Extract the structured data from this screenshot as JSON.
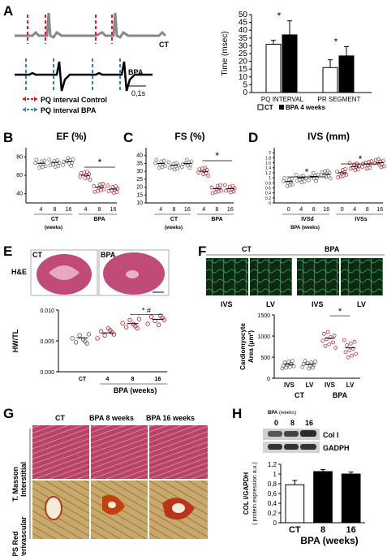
{
  "panels": {
    "A": {
      "label": "A",
      "trace_ct": "CT",
      "trace_bpa": "BPA",
      "scale": "0,1s",
      "legend_control": "PQ interval Control",
      "legend_bpa": "PQ interval BPA",
      "colors": {
        "control": "#e41a1c",
        "bpa": "#377eb8"
      },
      "chart_data": {
        "type": "bar",
        "categories": [
          "PQ INTERVAL",
          "PR SEGMENT"
        ],
        "series": [
          {
            "name": "CT",
            "values": [
              31,
              16
            ],
            "err": [
              2.5,
              5
            ]
          },
          {
            "name": "BPA 4 weeks",
            "values": [
              37,
              23.5
            ],
            "err": [
              9,
              6
            ]
          }
        ],
        "ylabel": "Time (msec)",
        "ylim": [
          0,
          50
        ],
        "yticks": [
          "0",
          "5",
          "10",
          "15",
          "20",
          "25",
          "30",
          "35",
          "40",
          "45",
          "50"
        ],
        "sig": [
          "*",
          "*"
        ],
        "legend": [
          "CT",
          "BPA 4 weeks"
        ]
      }
    },
    "B": {
      "label": "B",
      "chart_data": {
        "type": "scatter",
        "title": "EF (%)",
        "ylim": [
          30,
          90
        ],
        "yticks": [
          "40",
          "60",
          "80"
        ],
        "categories": [
          "4",
          "8",
          "16",
          "4",
          "8",
          "16"
        ],
        "groups": [
          "CT",
          "BPA"
        ],
        "group_sub": "(weeks)",
        "means": [
          73,
          74,
          75,
          60,
          47,
          45
        ],
        "sig": "*"
      }
    },
    "C": {
      "label": "C",
      "chart_data": {
        "type": "scatter",
        "title": "FS (%)",
        "ylim": [
          10,
          45
        ],
        "yticks": [
          "10",
          "15",
          "20",
          "25",
          "30",
          "35",
          "40"
        ],
        "categories": [
          "4",
          "8",
          "16",
          "4",
          "8",
          "16"
        ],
        "groups": [
          "CT",
          "BPA"
        ],
        "group_sub": "(weeks)",
        "means": [
          35,
          34,
          35,
          30,
          19,
          19
        ],
        "sig": "*"
      }
    },
    "D": {
      "label": "D",
      "chart_data": {
        "type": "scatter",
        "title": "IVS (mm)",
        "ylim": [
          0,
          2.2
        ],
        "yticks": [
          "0",
          "0.2",
          "0.4",
          "0.6",
          "0.8",
          "1",
          "1.2",
          "1.4",
          "1.6",
          "1.8",
          "2"
        ],
        "categories": [
          "0",
          "4",
          "8",
          "16",
          "0",
          "4",
          "8",
          "16"
        ],
        "groups": [
          "IVSd",
          "IVSs"
        ],
        "group_sub": "BPA (weeks)",
        "means": [
          0.85,
          1.0,
          1.05,
          1.15,
          1.2,
          1.45,
          1.55,
          1.6
        ],
        "sig": [
          "*",
          "*"
        ]
      }
    },
    "E": {
      "label": "E",
      "img_ct": "CT",
      "img_bpa": "BPA",
      "stain": "H&E",
      "chart_data": {
        "type": "scatter",
        "ylabel": "HW/TL",
        "ylim": [
          0,
          0.01
        ],
        "yticks": [
          "0.000",
          "0.005",
          "0.010"
        ],
        "categories": [
          "CT",
          "4",
          "8",
          "16"
        ],
        "xgroup": "BPA (weeks)",
        "means": [
          0.0055,
          0.0063,
          0.0078,
          0.0085
        ],
        "sig": "* #"
      }
    },
    "F": {
      "label": "F",
      "hdr_ct": "CT",
      "hdr_bpa": "BPA",
      "sub": [
        "IVS",
        "LV",
        "IVS",
        "LV"
      ],
      "chart_data": {
        "type": "scatter",
        "ylabel": "Cardiomyocyte Area (μm²)",
        "ylim": [
          0,
          1500
        ],
        "yticks": [
          "0",
          "500",
          "1000",
          "1500"
        ],
        "categories": [
          "IVS",
          "LV",
          "IVS",
          "LV"
        ],
        "groups": [
          "CT",
          "BPA"
        ],
        "means": [
          330,
          330,
          950,
          720
        ],
        "sig": "*"
      }
    },
    "G": {
      "label": "G",
      "cols": [
        "CT",
        "BPA 8 weeks",
        "BPA 16 weeks"
      ],
      "row1": [
        "T. Masson",
        "Interstitial"
      ],
      "row2": [
        "PS Red",
        "Perivascular"
      ]
    },
    "H": {
      "label": "H",
      "blot_title": "BPA",
      "blot_title_sub": "(weeks)",
      "lanes": [
        "0",
        "8",
        "16"
      ],
      "bands": [
        "Col I",
        "GADPH"
      ],
      "chart_data": {
        "type": "bar",
        "categories": [
          "CT",
          "8",
          "16"
        ],
        "values": [
          0.78,
          1.05,
          1.0
        ],
        "err": [
          0.09,
          0.04,
          0.04
        ],
        "ylabel": "COL I/GAPDH",
        "ylabel2": "( protein expression a.u.)",
        "ylim": [
          0,
          1.2
        ],
        "yticks": [
          "0",
          "0,2",
          "0,4",
          "0,6",
          "0,8",
          "1",
          "1,2"
        ],
        "xlabel": "BPA (weeks)"
      }
    }
  }
}
